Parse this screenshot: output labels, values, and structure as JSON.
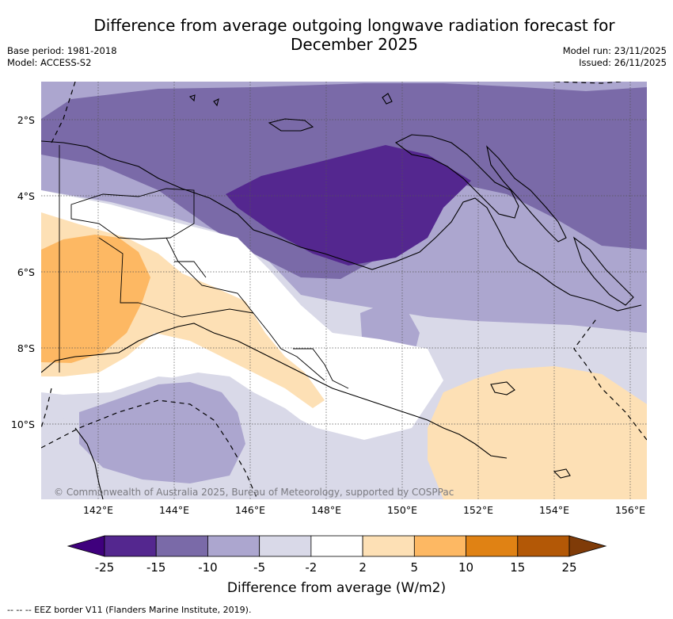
{
  "title": {
    "line1": "Difference from average outgoing longwave radiation forecast for",
    "line2": "December 2025"
  },
  "meta": {
    "base_period": "Base period: 1981-2018",
    "model": "Model: ACCESS-S2",
    "model_run": "Model run: 23/11/2025",
    "issued": "Issued: 26/11/2025"
  },
  "axes": {
    "lat_labels": [
      "2°S",
      "4°S",
      "6°S",
      "8°S",
      "10°S"
    ],
    "lon_labels": [
      "142°E",
      "144°E",
      "146°E",
      "148°E",
      "150°E",
      "152°E",
      "154°E",
      "156°E"
    ]
  },
  "copyright": "© Commonwealth of Australia 2025, Bureau of Meteorology, supported by COSPPac",
  "colorbar": {
    "label": "Difference from average (W/m2)",
    "ticks": [
      "-25",
      "-15",
      "-10",
      "-5",
      "-2",
      "2",
      "5",
      "10",
      "15",
      "25"
    ],
    "colors": [
      "#3f007d",
      "#54278f",
      "#7a6aa8",
      "#aca6cf",
      "#d9d9e8",
      "#ffffff",
      "#fde0b5",
      "#fdb863",
      "#e08214",
      "#b35806",
      "#7f3b08"
    ]
  },
  "footer": "--  --  -- EEZ border V11 (Flanders Marine Institute, 2019)."
}
